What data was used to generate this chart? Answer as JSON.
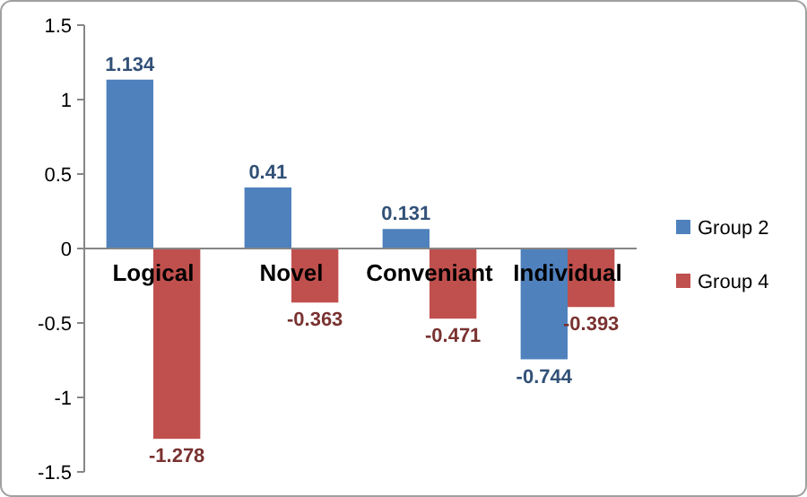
{
  "chart_data": {
    "type": "bar",
    "categories": [
      "Logical",
      "Novel",
      "Conveniant",
      "Individual"
    ],
    "series": [
      {
        "name": "Group 2",
        "color": "#4f81bd",
        "values": [
          1.134,
          0.41,
          0.131,
          -0.744
        ]
      },
      {
        "name": "Group 4",
        "color": "#c0504d",
        "values": [
          -1.278,
          -0.363,
          -0.471,
          -0.393
        ]
      }
    ],
    "ylim": [
      -1.5,
      1.5
    ],
    "yticks": [
      -1.5,
      -1,
      -0.5,
      0,
      0.5,
      1,
      1.5
    ],
    "data_labels": true,
    "grid": false,
    "legend": "right"
  }
}
